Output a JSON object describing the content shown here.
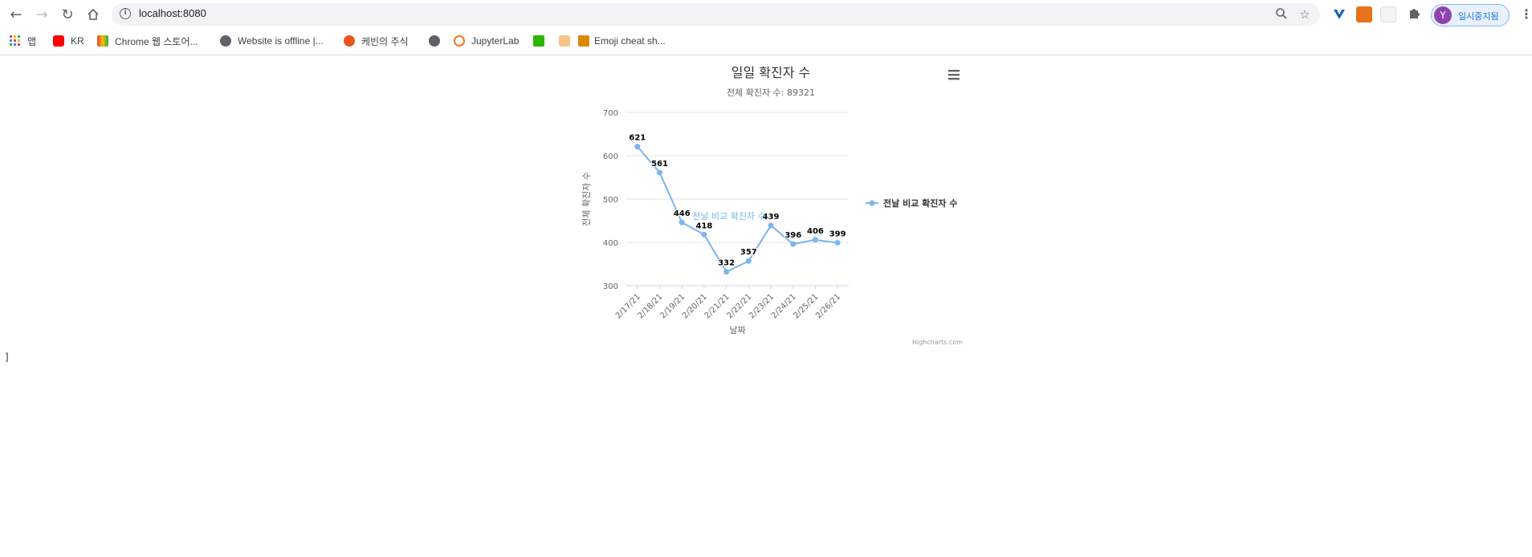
{
  "browser": {
    "url": "localhost:8080",
    "profile_initial": "Y",
    "profile_label": "일시중지됨",
    "bookmarks": [
      {
        "label": "앱",
        "icon": "apps-grid-icon"
      },
      {
        "label": "KR",
        "icon": "youtube-icon"
      },
      {
        "label": "Chrome 웹 스토어...",
        "icon": "chrome-webstore-icon"
      },
      {
        "label": "Website is offline |...",
        "icon": "globe-icon"
      },
      {
        "label": "케빈의 주식",
        "icon": "tistory-icon"
      },
      {
        "label": "",
        "icon": "globe-icon"
      },
      {
        "label": "JupyterLab",
        "icon": "jupyter-icon"
      },
      {
        "label": "",
        "icon": "blog-icon"
      },
      {
        "label": "",
        "icon": "thumbs-up-icon"
      },
      {
        "label": "Emoji cheat sh...",
        "icon": "gift-icon"
      }
    ]
  },
  "chart_data": {
    "type": "line",
    "title": "일일 확진자 수",
    "subtitle": "전체 확진자 수: 89321",
    "xlabel": "날짜",
    "ylabel": "전체 확진자 수",
    "categories": [
      "2/17/21",
      "2/18/21",
      "2/19/21",
      "2/20/21",
      "2/21/21",
      "2/22/21",
      "2/23/21",
      "2/24/21",
      "2/25/21",
      "2/26/21"
    ],
    "series": [
      {
        "name": "전날 비교 확진자 수",
        "values": [
          621,
          561,
          446,
          418,
          332,
          357,
          439,
          396,
          406,
          399
        ],
        "color": "#7cb5ec"
      }
    ],
    "ylim": [
      300,
      700
    ],
    "yticks": [
      300,
      400,
      500,
      600,
      700
    ],
    "grid": true,
    "legend": "right",
    "series_annotation": "전날 비교 확진자 수",
    "credits": "Highcharts.com",
    "text_color": "#333333",
    "grid_color": "#e6e6e6"
  },
  "stray_text": "]"
}
